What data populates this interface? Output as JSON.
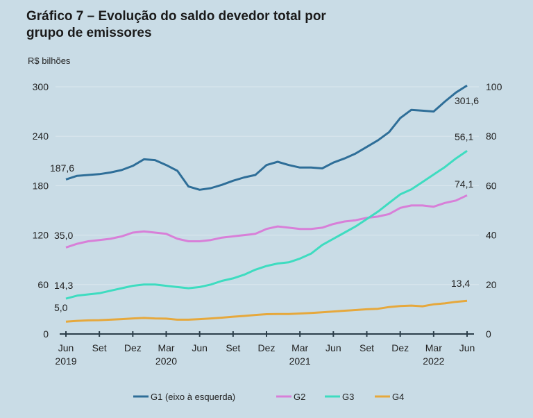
{
  "chart_data": {
    "type": "line",
    "title": "Gráfico 7 – Evolução do saldo devedor total por grupo de emissores",
    "title_lines": [
      "Gráfico 7 – Evolução do saldo devedor total por",
      "grupo de emissores"
    ],
    "ylabel": "R$ bilhões",
    "ylim_left": [
      0,
      300
    ],
    "yticks_left": [
      "0",
      "60",
      "120",
      "180",
      "240",
      "300"
    ],
    "ylim_right": [
      0,
      100
    ],
    "yticks_right": [
      "0",
      "20",
      "40",
      "60",
      "80",
      "100"
    ],
    "x_start": "2019-06",
    "x_end": "2022-06",
    "xtick_labels": [
      {
        "month": "Jun",
        "year": "2019"
      },
      {
        "month": "Set",
        "year": ""
      },
      {
        "month": "Dez",
        "year": ""
      },
      {
        "month": "Mar",
        "year": "2020"
      },
      {
        "month": "Jun",
        "year": ""
      },
      {
        "month": "Set",
        "year": ""
      },
      {
        "month": "Dez",
        "year": ""
      },
      {
        "month": "Mar",
        "year": "2021"
      },
      {
        "month": "Jun",
        "year": ""
      },
      {
        "month": "Set",
        "year": ""
      },
      {
        "month": "Dez",
        "year": ""
      },
      {
        "month": "Mar",
        "year": "2022"
      },
      {
        "month": "Jun",
        "year": ""
      }
    ],
    "grid": true,
    "legend_position": "bottom",
    "series": [
      {
        "name": "G1 (eixo à esquerda)",
        "axis": "left",
        "color": "#2e6e98",
        "start_label": "187,6",
        "end_label": "301,6",
        "values": [
          187.6,
          192,
          193,
          194,
          196,
          199,
          204,
          212,
          211,
          205,
          198,
          179,
          175,
          177,
          181,
          186,
          190,
          193,
          205,
          209,
          205,
          202,
          202,
          201,
          208,
          213,
          219,
          227,
          235,
          245,
          262,
          272,
          271,
          270,
          282,
          293,
          301.6
        ]
      },
      {
        "name": "G2",
        "axis": "right",
        "color": "#d87fd8",
        "start_label": "35,0",
        "end_label": "56,1",
        "values": [
          35,
          36.5,
          37.5,
          38,
          38.5,
          39.5,
          41,
          41.5,
          41,
          40.5,
          38.5,
          37.5,
          37.5,
          38,
          39,
          39.5,
          40,
          40.5,
          42.5,
          43.5,
          43,
          42.5,
          42.5,
          43,
          44.5,
          45.5,
          46,
          47,
          47.5,
          48.5,
          51,
          52,
          52,
          51.5,
          53,
          54,
          56.1
        ]
      },
      {
        "name": "G3",
        "axis": "right",
        "color": "#3edcc0",
        "start_label": "14,3",
        "end_label": "74,1",
        "values": [
          14.3,
          15.5,
          16,
          16.5,
          17.5,
          18.5,
          19.5,
          20,
          20,
          19.5,
          19,
          18.5,
          19,
          20,
          21.5,
          22.5,
          24,
          26,
          27.5,
          28.5,
          29,
          30.5,
          32.5,
          36,
          38.5,
          41,
          43.5,
          46.5,
          49.5,
          53,
          56.5,
          58.5,
          61.5,
          64.5,
          67.5,
          71,
          74.1
        ]
      },
      {
        "name": "G4",
        "axis": "right",
        "color": "#e6a83c",
        "start_label": "5,0",
        "end_label": "13,4",
        "values": [
          5.0,
          5.3,
          5.5,
          5.6,
          5.8,
          6.0,
          6.3,
          6.5,
          6.3,
          6.2,
          5.8,
          5.8,
          6.0,
          6.3,
          6.6,
          7.0,
          7.3,
          7.7,
          8.0,
          8.1,
          8.1,
          8.3,
          8.5,
          8.8,
          9.1,
          9.4,
          9.7,
          10.0,
          10.2,
          10.9,
          11.3,
          11.5,
          11.2,
          12.0,
          12.4,
          13.0,
          13.4
        ]
      }
    ]
  }
}
